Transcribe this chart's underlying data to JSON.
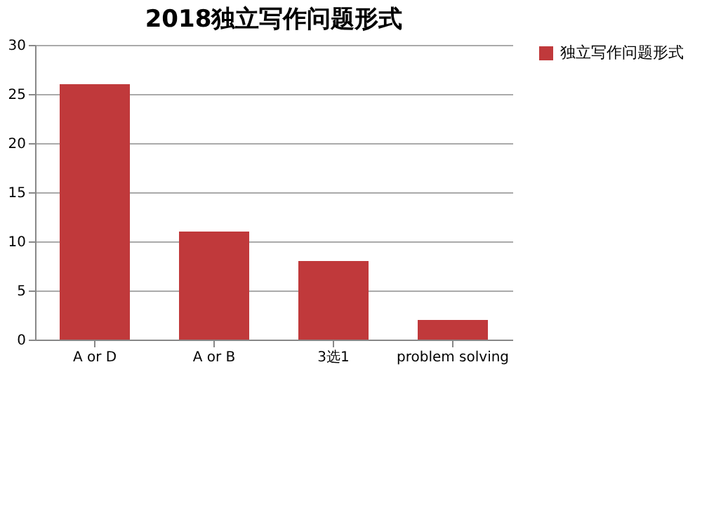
{
  "chart_data": {
    "type": "bar",
    "title": "2018独立写作问题形式",
    "categories": [
      "A or D",
      "A or B",
      "3选1",
      "problem solving"
    ],
    "series": [
      {
        "name": "独立写作问题形式",
        "color": "#c0393b",
        "values": [
          26,
          11,
          8,
          2
        ]
      }
    ],
    "ylim": [
      0,
      30
    ],
    "yticks": [
      0,
      5,
      10,
      15,
      20,
      25,
      30
    ],
    "grid": "y",
    "legend": "right"
  }
}
